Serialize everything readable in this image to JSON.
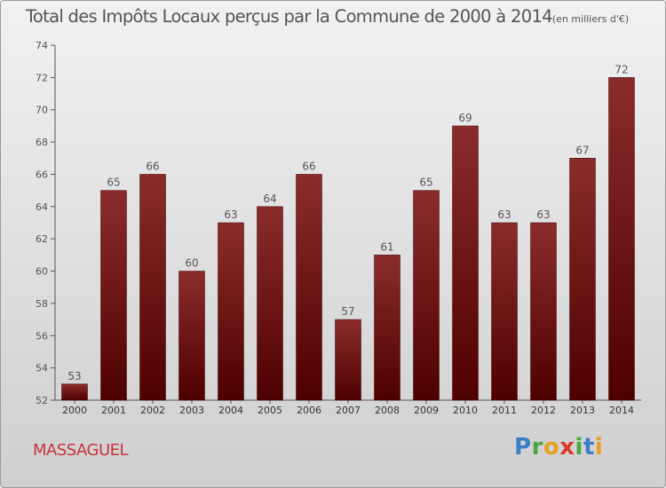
{
  "chart_data": {
    "type": "bar",
    "title": "Total des Impôts Locaux perçus par la Commune de 2000 à 2014",
    "unit": "(en milliers d'€)",
    "categories": [
      "2000",
      "2001",
      "2002",
      "2003",
      "2004",
      "2005",
      "2006",
      "2007",
      "2008",
      "2009",
      "2010",
      "2011",
      "2012",
      "2013",
      "2014"
    ],
    "values": [
      53,
      65,
      66,
      60,
      63,
      64,
      66,
      57,
      61,
      65,
      69,
      63,
      63,
      67,
      72
    ],
    "ylim": [
      52,
      74
    ],
    "yticks": [
      52,
      54,
      56,
      58,
      60,
      62,
      64,
      66,
      68,
      70,
      72,
      74
    ],
    "grid": false,
    "bar_color_top": "#8b2c2c",
    "bar_color_bottom": "#4e0000"
  },
  "footer": {
    "commune": "MASSAGUEL",
    "logo": "Proxiti"
  }
}
